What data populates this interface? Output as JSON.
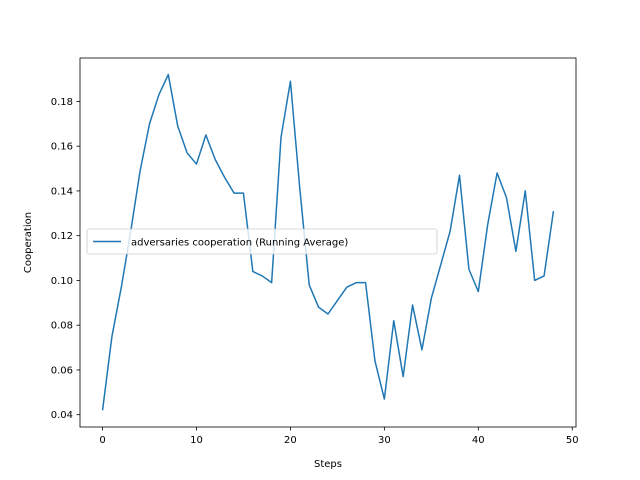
{
  "chart_data": {
    "type": "line",
    "xlabel": "Steps",
    "ylabel": "Cooperation",
    "xlim": [
      -2.4,
      50.4
    ],
    "ylim": [
      0.0345,
      0.1994
    ],
    "xticks": [
      0,
      10,
      20,
      30,
      40,
      50
    ],
    "yticks": [
      0.04,
      0.06,
      0.08,
      0.1,
      0.12,
      0.14,
      0.16,
      0.18
    ],
    "xtick_labels": [
      "0",
      "10",
      "20",
      "30",
      "40",
      "50"
    ],
    "ytick_labels": [
      "0.04",
      "0.06",
      "0.08",
      "0.10",
      "0.12",
      "0.14",
      "0.16",
      "0.18"
    ],
    "grid": false,
    "legend_placement": "center-left",
    "series": [
      {
        "name": "adversaries cooperation (Running Average)",
        "color": "#1f77b4",
        "x": [
          0,
          1,
          2,
          3,
          4,
          5,
          6,
          7,
          8,
          9,
          10,
          11,
          12,
          13,
          14,
          15,
          16,
          17,
          18,
          19,
          20,
          21,
          22,
          23,
          24,
          25,
          26,
          27,
          28,
          29,
          30,
          31,
          32,
          33,
          34,
          35,
          36,
          37,
          38,
          39,
          40,
          41,
          42,
          43,
          44,
          45,
          46,
          47,
          48
        ],
        "y": [
          0.042,
          0.075,
          0.097,
          0.122,
          0.149,
          0.17,
          0.183,
          0.192,
          0.169,
          0.157,
          0.152,
          0.165,
          0.154,
          0.146,
          0.139,
          0.139,
          0.104,
          0.102,
          0.099,
          0.164,
          0.189,
          0.141,
          0.098,
          0.088,
          0.085,
          0.091,
          0.097,
          0.099,
          0.099,
          0.064,
          0.047,
          0.082,
          0.057,
          0.089,
          0.069,
          0.092,
          0.107,
          0.122,
          0.147,
          0.105,
          0.095,
          0.125,
          0.148,
          0.137,
          0.113,
          0.14,
          0.1,
          0.102,
          0.131
        ]
      }
    ]
  }
}
